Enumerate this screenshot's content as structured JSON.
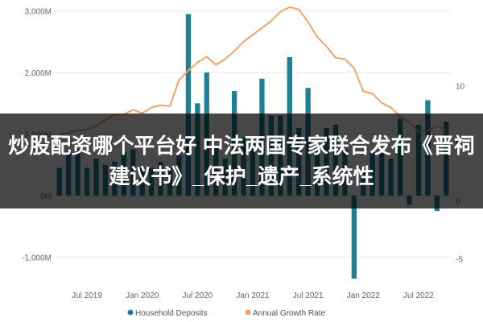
{
  "banner": {
    "text": "炒股配资哪个平台好 中法两国专家联合发布《晋祠建议书》_保护_遗产_系统性"
  },
  "chart_data": {
    "type": "bar+line",
    "title": "",
    "left_axis": {
      "ticks": [
        {
          "value": 3000,
          "label": "3,000M"
        },
        {
          "value": 2000,
          "label": "2,000M"
        },
        {
          "value": 1000,
          "label": "1,000M"
        },
        {
          "value": 0,
          "label": "0M"
        },
        {
          "value": -1000,
          "label": "-1,000M"
        }
      ],
      "range": [
        -1400,
        3100
      ]
    },
    "right_axis": {
      "ticks": [
        {
          "value": 10,
          "label": "10"
        },
        {
          "value": 5,
          "label": "5"
        },
        {
          "value": 0,
          "label": "0"
        },
        {
          "value": -5,
          "label": "-5"
        }
      ],
      "range": [
        -7,
        17
      ]
    },
    "x_ticks": [
      {
        "index": 3,
        "label": "Jul 2019"
      },
      {
        "index": 9,
        "label": "Jan 2020"
      },
      {
        "index": 15,
        "label": "Jul 2020"
      },
      {
        "index": 21,
        "label": "Jan 2021"
      },
      {
        "index": 27,
        "label": "Jul 2021"
      },
      {
        "index": 33,
        "label": "Jan 2022"
      },
      {
        "index": 39,
        "label": "Jul 2022"
      }
    ],
    "series": [
      {
        "name": "Household Deposits",
        "type": "bar",
        "color": "#1f7f96",
        "values": [
          450,
          700,
          750,
          450,
          600,
          500,
          550,
          700,
          750,
          450,
          450,
          550,
          450,
          650,
          2950,
          1500,
          2000,
          800,
          600,
          1700,
          950,
          850,
          1900,
          1300,
          1300,
          2250,
          1100,
          1750,
          800,
          1100,
          1150,
          750,
          -1350,
          450,
          700,
          700,
          600,
          1250,
          -150,
          1150,
          1550,
          -250,
          1200
        ]
      },
      {
        "name": "Annual Growth Rate",
        "type": "line",
        "color": "#f0a66b",
        "values": [
          5.8,
          5.9,
          6.1,
          6.2,
          6.5,
          7.0,
          7.5,
          7.5,
          7.9,
          7.6,
          8.1,
          8.3,
          8.2,
          10.5,
          11.3,
          12.0,
          12.5,
          11.8,
          12.3,
          13.0,
          13.8,
          14.4,
          15.0,
          15.6,
          16.4,
          16.8,
          16.6,
          15.5,
          14.2,
          13.4,
          12.4,
          12.3,
          11.5,
          9.5,
          9.3,
          8.5,
          8.1,
          7.3,
          6.8,
          6.0,
          6.1,
          6.5,
          6.2
        ]
      }
    ]
  },
  "legend": {
    "placement": "bottom",
    "items": [
      {
        "label": "Household Deposits",
        "color": "#1f7f96"
      },
      {
        "label": "Annual Growth Rate",
        "color": "#f0a66b"
      }
    ]
  }
}
